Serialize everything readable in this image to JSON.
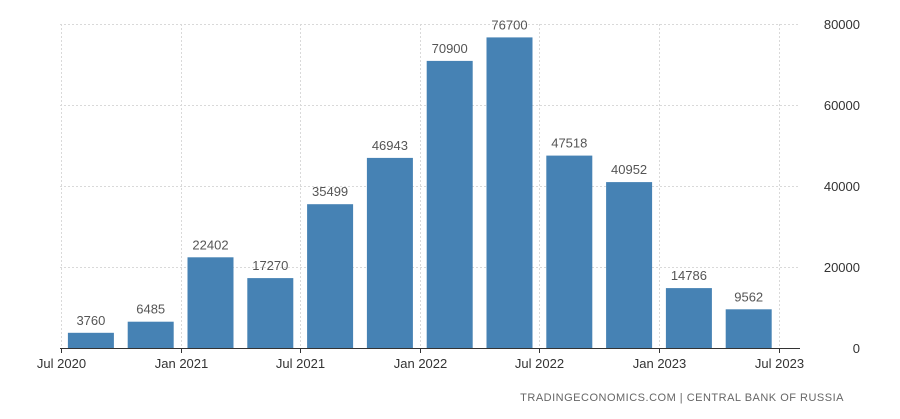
{
  "chart_data": {
    "type": "bar",
    "categories": [
      "Jul 2020",
      "Oct 2020",
      "Jan 2021",
      "Apr 2021",
      "Jul 2021",
      "Oct 2021",
      "Jan 2022",
      "Apr 2022",
      "Jul 2022",
      "Oct 2022",
      "Jan 2023",
      "Apr 2023"
    ],
    "values": [
      3760,
      6485,
      22402,
      17270,
      35499,
      46943,
      70900,
      76700,
      47518,
      40952,
      14786,
      9562
    ],
    "x_tick_labels": [
      "Jul 2020",
      "Jan 2021",
      "Jul 2021",
      "Jan 2022",
      "Jul 2022",
      "Jan 2023",
      "Jul 2023"
    ],
    "y_ticks": [
      0,
      20000,
      40000,
      60000,
      80000
    ],
    "ylim": [
      0,
      80000
    ],
    "y_axis_side": "right",
    "title": "",
    "xlabel": "",
    "ylabel": "",
    "grid": true,
    "bar_color": "#4682b4"
  },
  "source": "TRADINGECONOMICS.COM  |  CENTRAL BANK OF RUSSIA"
}
